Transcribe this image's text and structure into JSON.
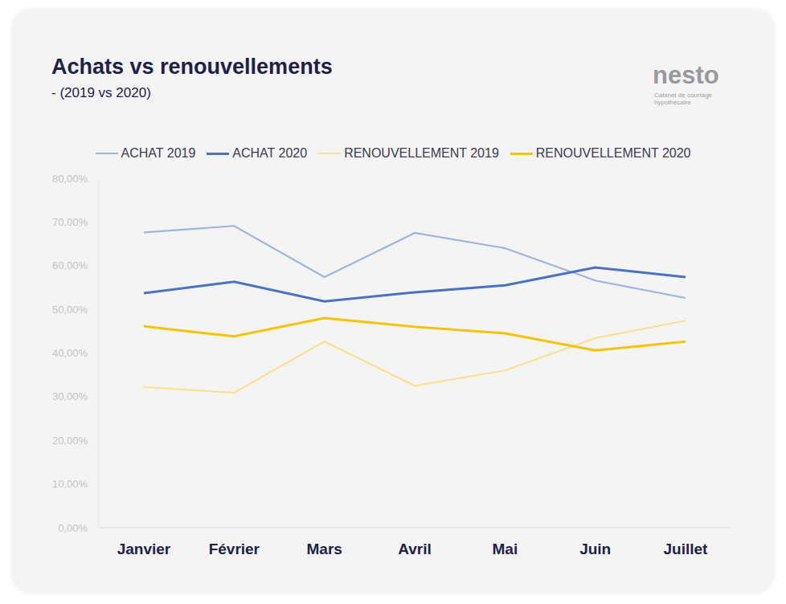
{
  "chart_data": {
    "type": "line",
    "title": "Achats vs renouvellements",
    "subtitle": "- (2019 vs 2020)",
    "annotations": [
      "nesto",
      "Cabinet de courtage hypothécaire"
    ],
    "categories": [
      "Janvier",
      "Février",
      "Mars",
      "Avril",
      "Mai",
      "Juin",
      "Juillet"
    ],
    "series": [
      {
        "name": "ACHAT 2019",
        "color": "#9fb4de",
        "values": [
          67.6,
          69.1,
          57.4,
          67.5,
          64.0,
          56.6,
          52.6
        ]
      },
      {
        "name": "ACHAT 2020",
        "color": "#4a72c4",
        "values": [
          53.7,
          56.3,
          51.8,
          53.9,
          55.5,
          59.6,
          57.4
        ]
      },
      {
        "name": "RENOUVELLEMENT 2019",
        "color": "#f8e291",
        "values": [
          32.2,
          30.9,
          42.6,
          32.5,
          36.0,
          43.4,
          47.4
        ]
      },
      {
        "name": "RENOUVELLEMENT 2020",
        "color": "#f5c300",
        "values": [
          46.1,
          43.8,
          48.0,
          46.0,
          44.5,
          40.6,
          42.6
        ]
      }
    ],
    "ylim": [
      0,
      80
    ],
    "yticks": [
      {
        "value": 0,
        "label": "0,00%"
      },
      {
        "value": 10,
        "label": "10,00%"
      },
      {
        "value": 20,
        "label": "20,00%"
      },
      {
        "value": 30,
        "label": "30,00%"
      },
      {
        "value": 40,
        "label": "40,00%"
      },
      {
        "value": 50,
        "label": "50,00%"
      },
      {
        "value": 60,
        "label": "60,00%"
      },
      {
        "value": 70,
        "label": "70,00%"
      },
      {
        "value": 80,
        "label": "80,00%"
      }
    ],
    "grid": false,
    "legend": "top"
  }
}
